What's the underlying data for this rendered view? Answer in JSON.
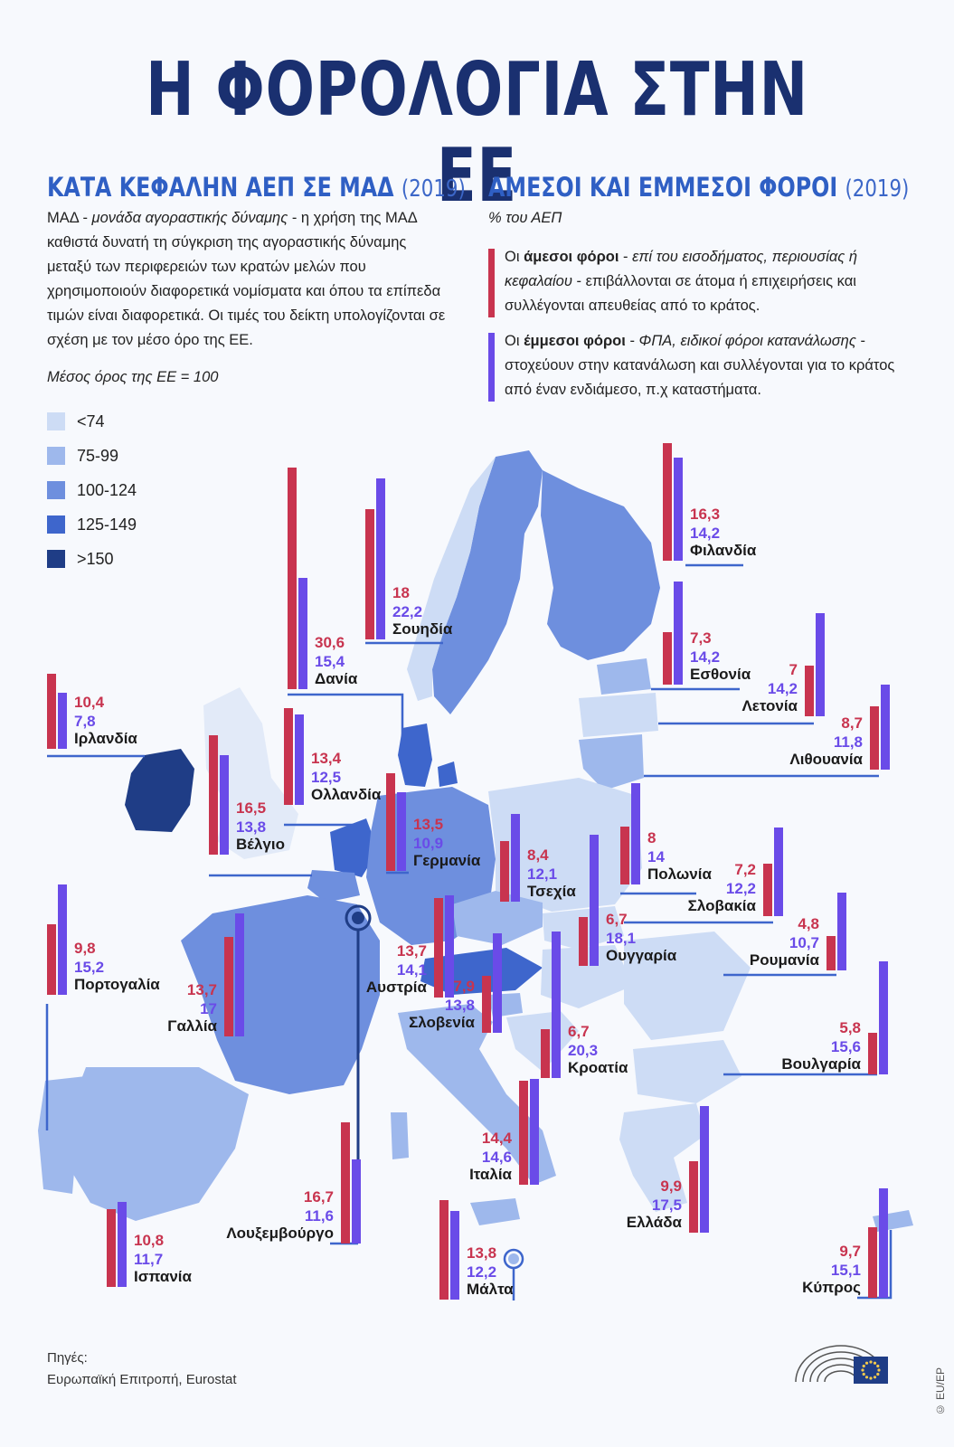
{
  "title": "Η ΦΟΡΟΛΟΓΙΑ ΣΤΗΝ ΕΕ",
  "left_section": {
    "heading": "ΚΑΤΑ ΚΕΦΑΛΗΝ ΑΕΠ ΣΕ ΜΑΔ",
    "year": "(2019)",
    "desc_term": "ΜΑΔ",
    "desc_italic": "μονάδα αγοραστικής δύναμης",
    "desc_rest": "- η χρήση της ΜΑΔ καθιστά δυνατή τη σύγκριση της αγοραστικής δύναμης μεταξύ των περιφερειών των κρατών μελών που χρησιμοποιούν διαφορετικά νομίσματα και όπου τα επίπεδα τιμών είναι διαφορετικά. Οι τιμές του δείκτη υπολογίζονται σε σχέση με τον μέσο όρο της ΕΕ.",
    "avg_note": "Μέσος όρος της ΕΕ = 100",
    "legend": [
      {
        "label": "<74",
        "color": "#cddcf5"
      },
      {
        "label": "75-99",
        "color": "#9eb8ec"
      },
      {
        "label": "100-124",
        "color": "#6e8fde"
      },
      {
        "label": "125-149",
        "color": "#3e66cc"
      },
      {
        "label": ">150",
        "color": "#1f3d86"
      }
    ]
  },
  "right_section": {
    "heading": "ΑΜΕΣΟΙ ΚΑΙ ΕΜΜΕΣΟΙ ΦΟΡΟΙ",
    "year": "(2019)",
    "unit": "% του ΑΕΠ",
    "direct": {
      "lead": "Οι",
      "bold": "άμεσοι φόροι",
      "italic": "επί του εισοδήματος, περιουσίας ή κεφαλαίου",
      "rest": "- επιβάλλονται σε άτομα ή επιχειρήσεις και συλλέγονται απευθείας από το κράτος.",
      "color": "#c8344f"
    },
    "indirect": {
      "lead": "Οι",
      "bold": "έμμεσοι φόροι",
      "italic": "ΦΠΑ, ειδικοί φόροι κατανάλωσης",
      "rest": "- στοχεύουν στην κατανάλωση και συλλέγονται για το κράτος από έναν ενδιάμεσο, π.χ καταστήματα.",
      "color": "#6a4be8"
    }
  },
  "chart_data": {
    "type": "bar",
    "unit": "% του ΑΕΠ",
    "series": [
      {
        "name": "άμεσοι φόροι",
        "color": "#c8344f"
      },
      {
        "name": "έμμεσοι φόροι",
        "color": "#6a4be8"
      }
    ],
    "countries": [
      {
        "name": "Φιλανδία",
        "direct": "16,3",
        "indirect": "14,2",
        "gdp_band": "100-124"
      },
      {
        "name": "Σουηδία",
        "direct": "18",
        "indirect": "22,2",
        "gdp_band": "100-124"
      },
      {
        "name": "Δανία",
        "direct": "30,6",
        "indirect": "15,4",
        "gdp_band": "125-149"
      },
      {
        "name": "Ιρλανδία",
        "direct": "10,4",
        "indirect": "7,8",
        "gdp_band": ">150"
      },
      {
        "name": "Εσθονία",
        "direct": "7,3",
        "indirect": "14,2",
        "gdp_band": "75-99"
      },
      {
        "name": "Λετονία",
        "direct": "7",
        "indirect": "14,2",
        "gdp_band": "<74"
      },
      {
        "name": "Λιθουανία",
        "direct": "8,7",
        "indirect": "11,8",
        "gdp_band": "75-99"
      },
      {
        "name": "Ολλανδία",
        "direct": "13,4",
        "indirect": "12,5",
        "gdp_band": "125-149"
      },
      {
        "name": "Βέλγιο",
        "direct": "16,5",
        "indirect": "13,8",
        "gdp_band": "100-124"
      },
      {
        "name": "Γερμανία",
        "direct": "13,5",
        "indirect": "10,9",
        "gdp_band": "100-124"
      },
      {
        "name": "Πολωνία",
        "direct": "8",
        "indirect": "14",
        "gdp_band": "<74"
      },
      {
        "name": "Τσεχία",
        "direct": "8,4",
        "indirect": "12,1",
        "gdp_band": "75-99"
      },
      {
        "name": "Σλοβακία",
        "direct": "7,2",
        "indirect": "12,2",
        "gdp_band": "<74"
      },
      {
        "name": "Πορτογαλία",
        "direct": "9,8",
        "indirect": "15,2",
        "gdp_band": "75-99"
      },
      {
        "name": "Γαλλία",
        "direct": "13,7",
        "indirect": "17",
        "gdp_band": "100-124"
      },
      {
        "name": "Αυστρία",
        "direct": "13,7",
        "indirect": "14,1",
        "gdp_band": "125-149"
      },
      {
        "name": "Ουγγαρία",
        "direct": "6,7",
        "indirect": "18,1",
        "gdp_band": "<74"
      },
      {
        "name": "Ρουμανία",
        "direct": "4,8",
        "indirect": "10,7",
        "gdp_band": "<74"
      },
      {
        "name": "Σλοβενία",
        "direct": "7,9",
        "indirect": "13,8",
        "gdp_band": "75-99"
      },
      {
        "name": "Κροατία",
        "direct": "6,7",
        "indirect": "20,3",
        "gdp_band": "<74"
      },
      {
        "name": "Βουλγαρία",
        "direct": "5,8",
        "indirect": "15,6",
        "gdp_band": "<74"
      },
      {
        "name": "Ιταλία",
        "direct": "14,4",
        "indirect": "14,6",
        "gdp_band": "75-99"
      },
      {
        "name": "Ισπανία",
        "direct": "10,8",
        "indirect": "11,7",
        "gdp_band": "75-99"
      },
      {
        "name": "Λουξεμβούργο",
        "direct": "16,7",
        "indirect": "11,6",
        "gdp_band": ">150"
      },
      {
        "name": "Μάλτα",
        "direct": "13,8",
        "indirect": "12,2",
        "gdp_band": "75-99"
      },
      {
        "name": "Ελλάδα",
        "direct": "9,9",
        "indirect": "17,5",
        "gdp_band": "<74"
      },
      {
        "name": "Κύπρος",
        "direct": "9,7",
        "indirect": "15,1",
        "gdp_band": "75-99"
      }
    ]
  },
  "sources": {
    "label": "Πηγές:",
    "text": "Ευρωπαϊκή Επιτροπή, Eurostat"
  },
  "copyright": "© EU/EP"
}
